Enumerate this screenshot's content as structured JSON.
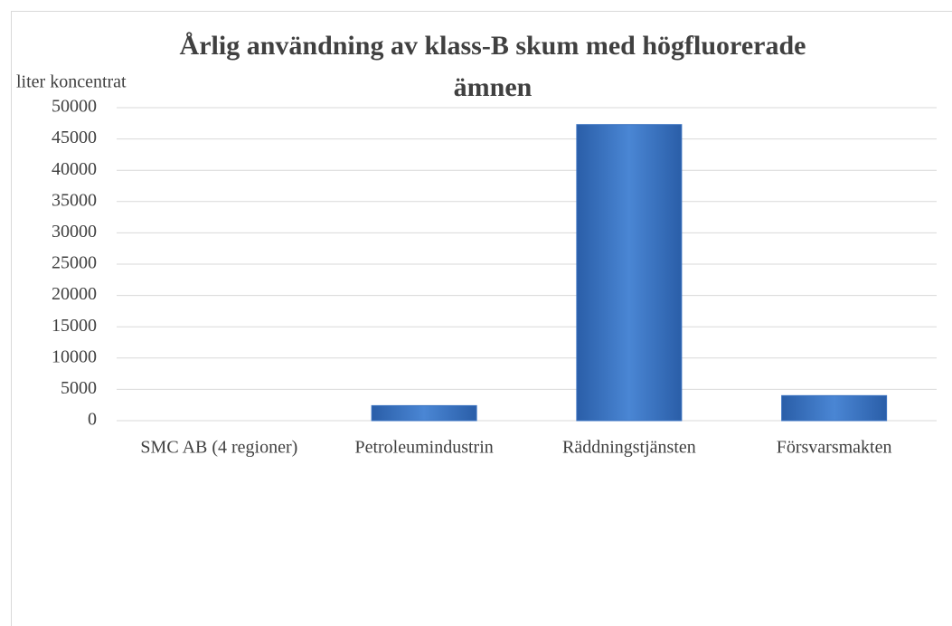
{
  "chart_data": {
    "type": "bar",
    "title": "Årlig användning av klass-B skum med högfluorerade ämnen",
    "y_axis_label": "liter koncentrat",
    "categories": [
      "SMC AB  (4 regioner)",
      "Petroleumindustrin",
      "Räddningstjänsten",
      "Försvarsmakten"
    ],
    "values": [
      0,
      2400,
      47300,
      4000
    ],
    "color": "#3a72c0",
    "ylim": [
      0,
      50000
    ],
    "yticks": [
      0,
      5000,
      10000,
      15000,
      20000,
      25000,
      30000,
      35000,
      40000,
      45000,
      50000
    ],
    "grid": true
  }
}
